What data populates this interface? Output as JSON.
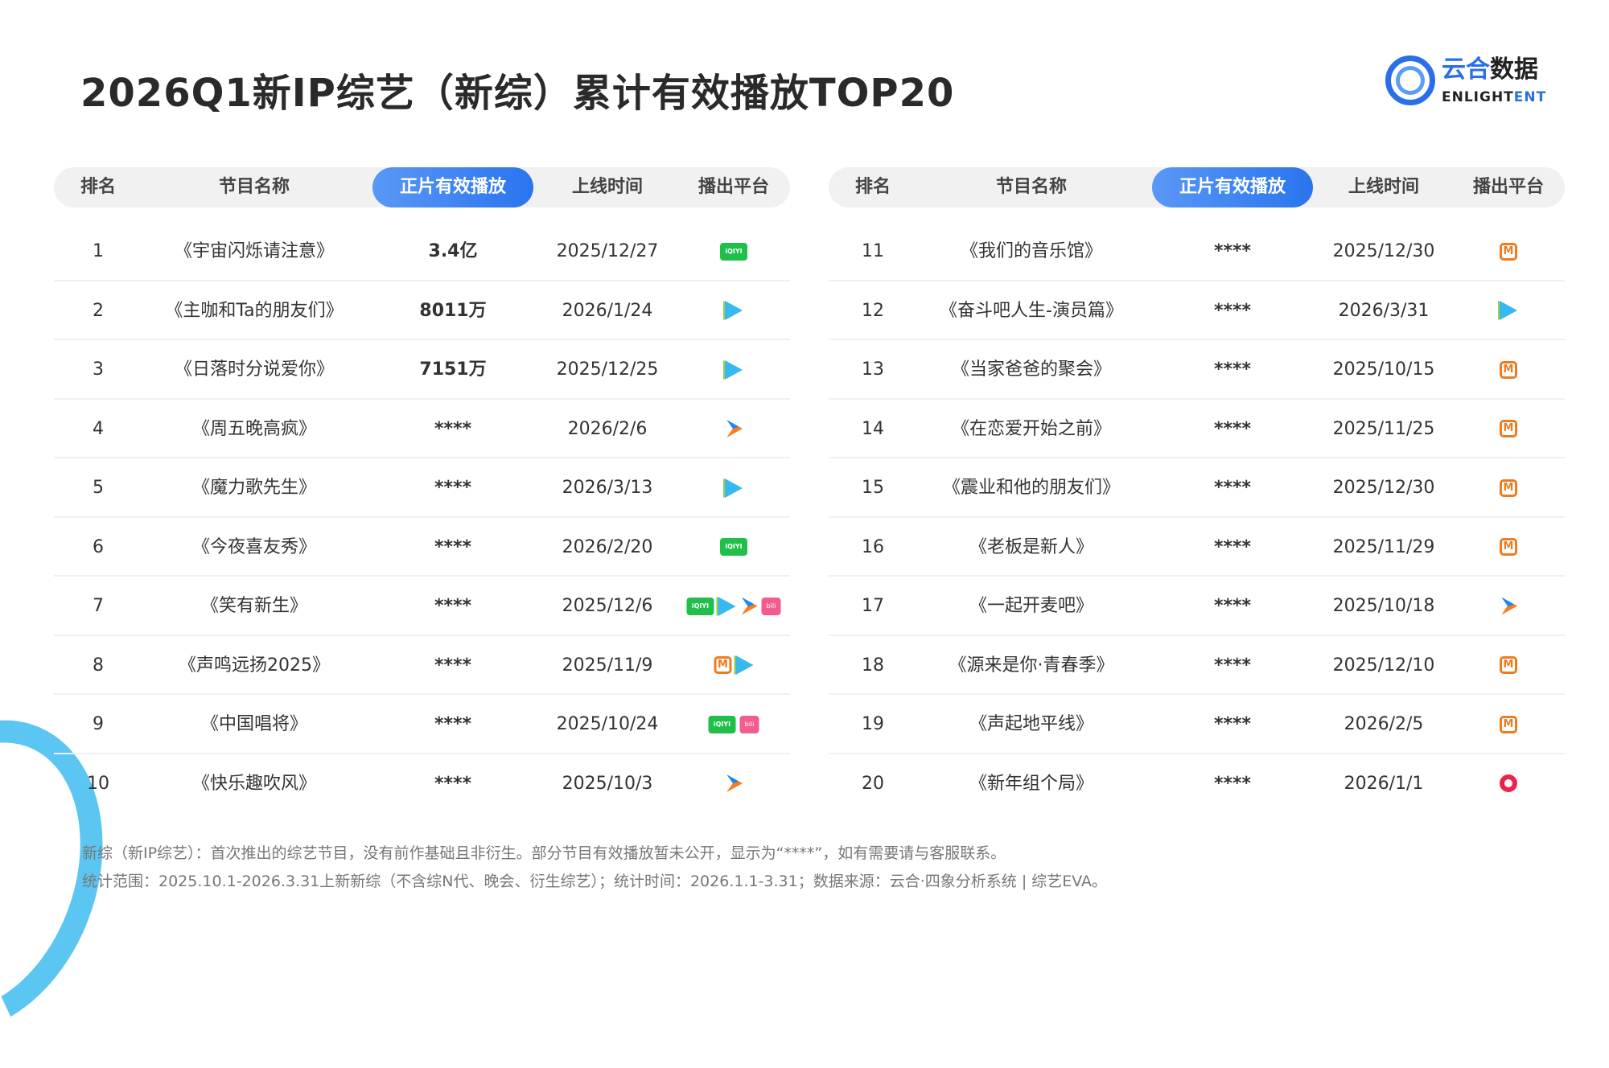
{
  "title": "2026Q1新IP综艺（新综）累计有效播放TOP20",
  "logo": {
    "cn_blue": "云合",
    "cn_dark": "数据",
    "en_dark": "ENLIGHT",
    "en_blue": "ENT"
  },
  "headers": {
    "rank": "排名",
    "name": "节目名称",
    "plays": "正片有效播放",
    "date": "上线时间",
    "platform": "播出平台"
  },
  "accent": "#2a74ee",
  "left_rows": [
    {
      "rank": "1",
      "name": "《宇宙闪烁请注意》",
      "plays": "3.4亿",
      "date": "2025/12/27",
      "platforms": [
        "iqiyi"
      ]
    },
    {
      "rank": "2",
      "name": "《主咖和Ta的朋友们》",
      "plays": "8011万",
      "date": "2026/1/24",
      "platforms": [
        "tencent"
      ]
    },
    {
      "rank": "3",
      "name": "《日落时分说爱你》",
      "plays": "7151万",
      "date": "2025/12/25",
      "platforms": [
        "tencent"
      ]
    },
    {
      "rank": "4",
      "name": "《周五晚高疯》",
      "plays": "****",
      "date": "2026/2/6",
      "platforms": [
        "youku"
      ]
    },
    {
      "rank": "5",
      "name": "《魔力歌先生》",
      "plays": "****",
      "date": "2026/3/13",
      "platforms": [
        "tencent"
      ]
    },
    {
      "rank": "6",
      "name": "《今夜喜友秀》",
      "plays": "****",
      "date": "2026/2/20",
      "platforms": [
        "iqiyi"
      ]
    },
    {
      "rank": "7",
      "name": "《笑有新生》",
      "plays": "****",
      "date": "2025/12/6",
      "platforms": [
        "iqiyi",
        "tencent",
        "youku",
        "bili"
      ]
    },
    {
      "rank": "8",
      "name": "《声鸣远扬2025》",
      "plays": "****",
      "date": "2025/11/9",
      "platforms": [
        "mgtv",
        "tencent"
      ]
    },
    {
      "rank": "9",
      "name": "《中国唱将》",
      "plays": "****",
      "date": "2025/10/24",
      "platforms": [
        "iqiyi",
        "bili"
      ]
    },
    {
      "rank": "10",
      "name": "《快乐趣吹风》",
      "plays": "****",
      "date": "2025/10/3",
      "platforms": [
        "youku"
      ]
    }
  ],
  "right_rows": [
    {
      "rank": "11",
      "name": "《我们的音乐馆》",
      "plays": "****",
      "date": "2025/12/30",
      "platforms": [
        "mgtv"
      ]
    },
    {
      "rank": "12",
      "name": "《奋斗吧人生-演员篇》",
      "plays": "****",
      "date": "2026/3/31",
      "platforms": [
        "tencent"
      ]
    },
    {
      "rank": "13",
      "name": "《当家爸爸的聚会》",
      "plays": "****",
      "date": "2025/10/15",
      "platforms": [
        "mgtv"
      ]
    },
    {
      "rank": "14",
      "name": "《在恋爱开始之前》",
      "plays": "****",
      "date": "2025/11/25",
      "platforms": [
        "mgtv"
      ]
    },
    {
      "rank": "15",
      "name": "《震业和他的朋友们》",
      "plays": "****",
      "date": "2025/12/30",
      "platforms": [
        "mgtv"
      ]
    },
    {
      "rank": "16",
      "name": "《老板是新人》",
      "plays": "****",
      "date": "2025/11/29",
      "platforms": [
        "mgtv"
      ]
    },
    {
      "rank": "17",
      "name": "《一起开麦吧》",
      "plays": "****",
      "date": "2025/10/18",
      "platforms": [
        "youku"
      ]
    },
    {
      "rank": "18",
      "name": "《源来是你·青春季》",
      "plays": "****",
      "date": "2025/12/10",
      "platforms": [
        "mgtv"
      ]
    },
    {
      "rank": "19",
      "name": "《声起地平线》",
      "plays": "****",
      "date": "2026/2/5",
      "platforms": [
        "mgtv"
      ]
    },
    {
      "rank": "20",
      "name": "《新年组个局》",
      "plays": "****",
      "date": "2026/1/1",
      "platforms": [
        "red"
      ]
    }
  ],
  "footnotes": [
    "新综（新IP综艺）：首次推出的综艺节目，没有前作基础且非衍生。部分节目有效播放暂未公开，显示为“****”，如有需要请与客服联系。",
    "统计范围：2025.10.1-2026.3.31上新新综（不含综N代、晚会、衍生综艺）；统计时间：2026.1.1-3.31；数据来源：云合·四象分析系统 | 综艺EVA。"
  ]
}
